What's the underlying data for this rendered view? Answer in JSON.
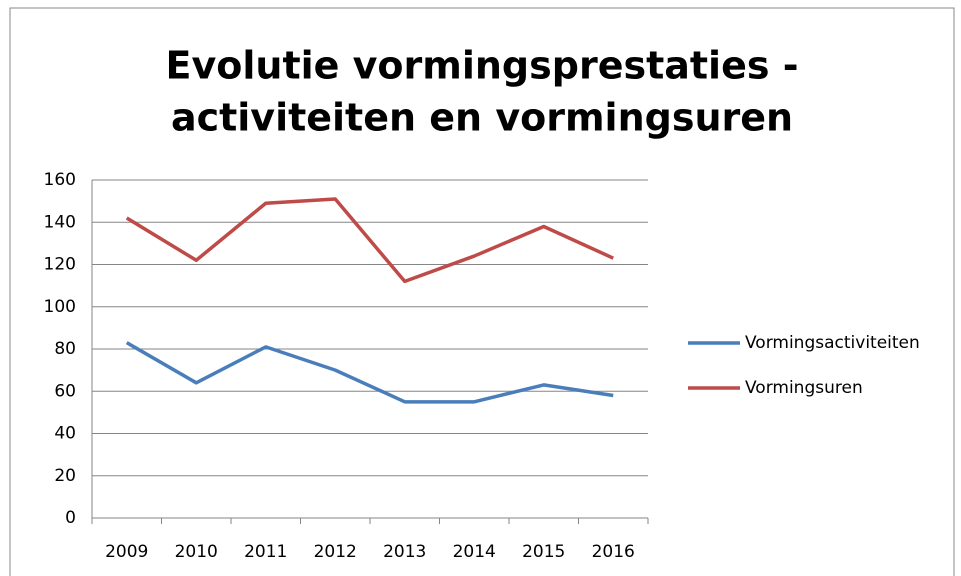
{
  "chart_data": {
    "type": "line",
    "title": [
      "Evolutie vormingsprestaties -",
      "activiteiten en vormingsuren"
    ],
    "categories": [
      "2009",
      "2010",
      "2011",
      "2012",
      "2013",
      "2014",
      "2015",
      "2016"
    ],
    "series": [
      {
        "name": "Vormingsactiviteiten",
        "color": "#4a7ebb",
        "values": [
          83,
          64,
          81,
          70,
          55,
          55,
          63,
          58
        ]
      },
      {
        "name": "Vormingsuren",
        "color": "#be4b48",
        "values": [
          142,
          122,
          149,
          151,
          112,
          124,
          138,
          123
        ]
      }
    ],
    "ylim": [
      0,
      160
    ],
    "yticks": [
      0,
      20,
      40,
      60,
      80,
      100,
      120,
      140,
      160
    ],
    "grid": true,
    "legend": "right"
  }
}
